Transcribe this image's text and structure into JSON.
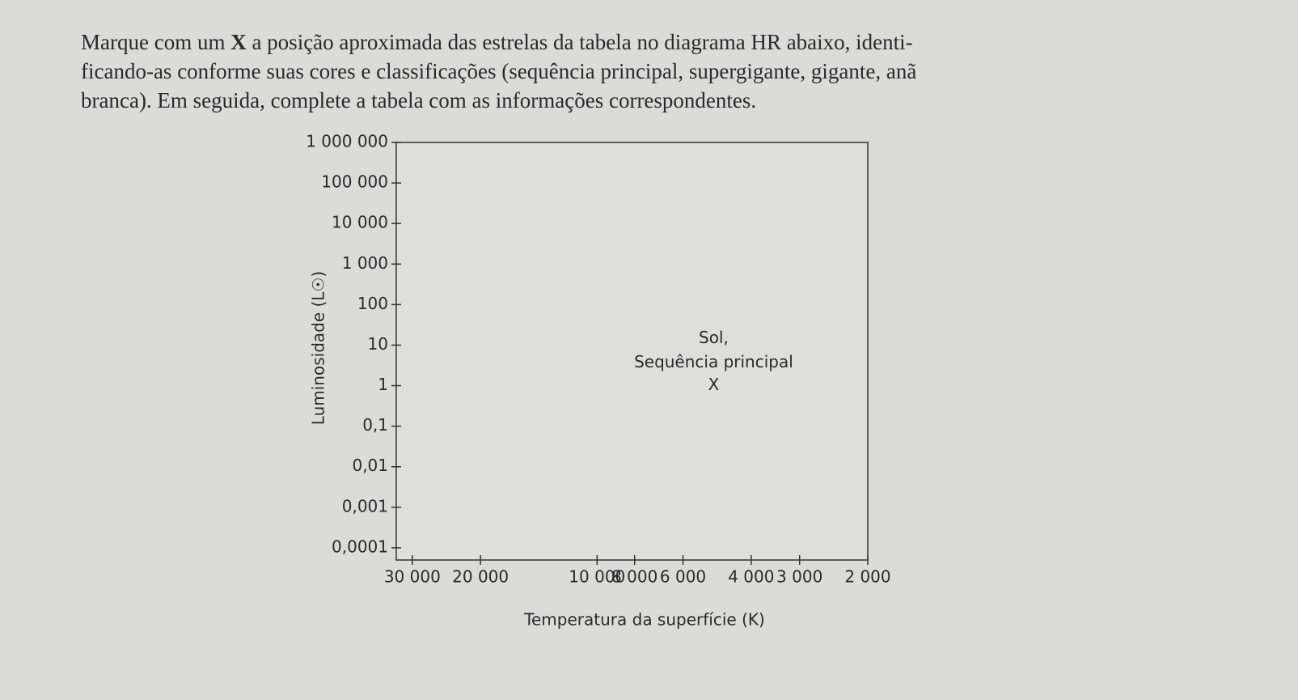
{
  "instruction": {
    "lines": [
      [
        "Marque com um ",
        "X",
        " a posição aproximada das estrelas da tabela no diagrama HR abaixo, identi-"
      ],
      "ficando-as conforme suas cores e classificações (sequência principal, supergigante, gigante, anã",
      "branca). Em seguida, complete a tabela com as informações correspondentes."
    ]
  },
  "chart_data": {
    "type": "scatter",
    "x_label": "Temperatura da superfície (K)",
    "y_label": "Luminosidade (L☉)",
    "x_scale": "log",
    "y_scale": "log",
    "x_reversed": true,
    "xlim": [
      33000,
      2000
    ],
    "xticks": [
      {
        "value": 30000,
        "label": "30 000"
      },
      {
        "value": 20000,
        "label": "20 000"
      },
      {
        "value": 10000,
        "label": "10 000"
      },
      {
        "value": 8000,
        "label": "8 000"
      },
      {
        "value": 6000,
        "label": "6 000"
      },
      {
        "value": 4000,
        "label": "4 000"
      },
      {
        "value": 3000,
        "label": "3 000"
      },
      {
        "value": 2000,
        "label": "2 000"
      }
    ],
    "ylim": [
      5e-05,
      1000000
    ],
    "yticks": [
      {
        "value": 1000000,
        "label": "1 000 000"
      },
      {
        "value": 100000,
        "label": "100 000"
      },
      {
        "value": 10000,
        "label": "10 000"
      },
      {
        "value": 1000,
        "label": "1 000"
      },
      100,
      10,
      1,
      {
        "value": 0.1,
        "label": "0,1"
      },
      {
        "value": 0.01,
        "label": "0,01"
      },
      {
        "value": 0.001,
        "label": "0,001"
      },
      {
        "value": 0.0001,
        "label": "0,0001"
      }
    ],
    "points": [
      {
        "x": 5000,
        "y": 1,
        "marker": "X",
        "label": [
          "Sol,",
          "Sequência principal"
        ]
      }
    ],
    "color": "#333333"
  }
}
